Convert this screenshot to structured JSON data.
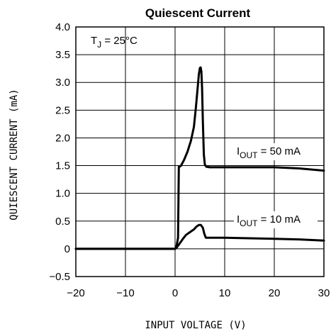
{
  "chart_data": {
    "type": "line",
    "title": "Quiescent Current",
    "xlabel": "INPUT VOLTAGE (V)",
    "ylabel": "QUIESCENT CURRENT (mA)",
    "xlim": [
      -20,
      30
    ],
    "ylim": [
      -0.5,
      4.0
    ],
    "xticks": [
      -20,
      -10,
      0,
      10,
      20,
      30
    ],
    "yticks": [
      -0.5,
      0,
      0.5,
      1.0,
      1.5,
      2.0,
      2.5,
      3.0,
      3.5,
      4.0
    ],
    "xtick_labels": [
      "−20",
      "−10",
      "0",
      "10",
      "20",
      "30"
    ],
    "ytick_labels": [
      "−0.5",
      "0",
      "0.5",
      "1.0",
      "1.5",
      "2.0",
      "2.5",
      "3.0",
      "3.5",
      "4.0"
    ],
    "grid": true,
    "annotations": {
      "temp": {
        "text": "T",
        "sub": "J",
        "rest": " = 25°C"
      },
      "series1": {
        "text": "I",
        "sub": "OUT",
        "rest": " = 50 mA"
      },
      "series2": {
        "text": "I",
        "sub": "OUT",
        "rest": " = 10 mA"
      }
    },
    "series": [
      {
        "x": [
          -20,
          -10,
          0,
          0.3,
          0.6,
          0.75,
          0.9,
          1.2,
          1.8,
          2.5,
          3.2,
          3.8,
          4.2,
          4.4,
          4.6,
          4.8,
          5.0,
          5.15,
          5.3,
          5.45,
          5.6,
          5.8,
          6.0,
          6.3,
          7,
          10,
          15,
          20,
          25,
          30
        ],
        "y": [
          0,
          0,
          0,
          0.05,
          0.2,
          1.48,
          1.48,
          1.5,
          1.6,
          1.75,
          1.95,
          2.2,
          2.55,
          2.75,
          2.95,
          3.15,
          3.26,
          3.27,
          3.2,
          2.9,
          2.3,
          1.7,
          1.52,
          1.48,
          1.47,
          1.47,
          1.47,
          1.47,
          1.45,
          1.41
        ]
      },
      {
        "x": [
          -20,
          -10,
          0,
          0.3,
          0.8,
          1.5,
          2.2,
          3.0,
          3.8,
          4.3,
          4.8,
          5.2,
          5.6,
          5.9,
          6.2,
          7,
          10,
          15,
          20,
          25,
          30
        ],
        "y": [
          0,
          0,
          0,
          0.02,
          0.08,
          0.17,
          0.25,
          0.3,
          0.35,
          0.4,
          0.43,
          0.43,
          0.38,
          0.27,
          0.2,
          0.2,
          0.2,
          0.19,
          0.18,
          0.17,
          0.15
        ]
      }
    ]
  }
}
